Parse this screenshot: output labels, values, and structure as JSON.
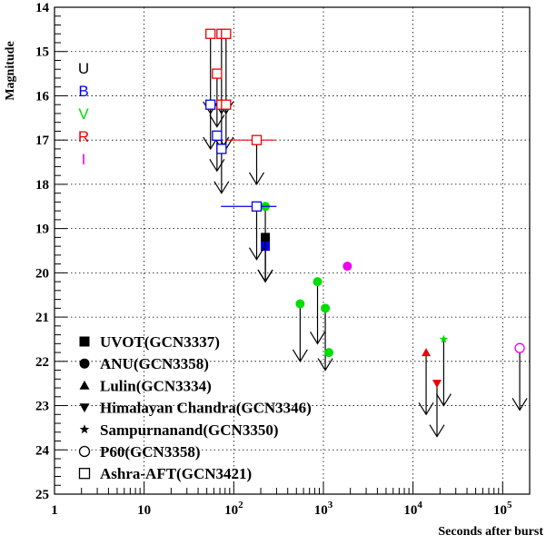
{
  "chart_data": {
    "type": "scatter",
    "xlabel": "Seconds after burst",
    "ylabel": "Magnitude",
    "xscale": "log",
    "xlim": [
      1,
      200000
    ],
    "ylim": [
      14,
      25
    ],
    "y_inverted": true,
    "grid": true,
    "x_ticks": [
      {
        "value": 1,
        "base": "1",
        "exp": ""
      },
      {
        "value": 10,
        "base": "10",
        "exp": ""
      },
      {
        "value": 100,
        "base": "10",
        "exp": "2"
      },
      {
        "value": 1000,
        "base": "10",
        "exp": "3"
      },
      {
        "value": 10000,
        "base": "10",
        "exp": "4"
      },
      {
        "value": 100000,
        "base": "10",
        "exp": "5"
      }
    ],
    "y_ticks": [
      14,
      15,
      16,
      17,
      18,
      19,
      20,
      21,
      22,
      23,
      24,
      25
    ],
    "band_labels": [
      {
        "text": "U",
        "color": "#000000"
      },
      {
        "text": "B",
        "color": "#0000ee"
      },
      {
        "text": "V",
        "color": "#00dd00"
      },
      {
        "text": "R",
        "color": "#ee0000"
      },
      {
        "text": "I",
        "color": "#ee00ee"
      }
    ],
    "legend": [
      {
        "label": "UVOT(GCN3337)",
        "marker": "square-filled"
      },
      {
        "label": "ANU(GCN3358)",
        "marker": "circle-filled"
      },
      {
        "label": "Lulin(GCN3334)",
        "marker": "triangle-up"
      },
      {
        "label": "Himalayan Chandra(GCN3346)",
        "marker": "triangle-down"
      },
      {
        "label": "Sampurnanand(GCN3350)",
        "marker": "star"
      },
      {
        "label": "P60(GCN3358)",
        "marker": "circle-open"
      },
      {
        "label": "Ashra-AFT(GCN3421)",
        "marker": "square-open"
      }
    ],
    "series": [
      {
        "source": "UVOT(GCN3337)",
        "marker": "square-filled",
        "points": [
          {
            "x": 225,
            "y": 19.2,
            "band": "U",
            "color": "#000000",
            "limit": true,
            "ylo": 20.2
          },
          {
            "x": 225,
            "y": 19.4,
            "band": "B",
            "color": "#0000ee",
            "limit": true,
            "ylo": 20.2
          }
        ]
      },
      {
        "source": "ANU(GCN3358)",
        "marker": "circle-filled",
        "points": [
          {
            "x": 225,
            "y": 18.5,
            "band": "V",
            "color": "#00dd00",
            "limit": true,
            "ylo": 20.2
          },
          {
            "x": 550,
            "y": 20.7,
            "band": "V",
            "color": "#00dd00",
            "limit": true,
            "ylo": 22.0
          },
          {
            "x": 860,
            "y": 20.2,
            "band": "V",
            "color": "#00dd00",
            "limit": true,
            "ylo": 21.6
          },
          {
            "x": 1050,
            "y": 20.8,
            "band": "V",
            "color": "#00dd00",
            "limit": true,
            "ylo": 22.2
          },
          {
            "x": 1150,
            "y": 21.8,
            "band": "V",
            "color": "#00dd00",
            "limit": false
          },
          {
            "x": 1850,
            "y": 19.85,
            "band": "I",
            "color": "#ee00ee",
            "limit": false
          }
        ]
      },
      {
        "source": "Lulin(GCN3334)",
        "marker": "triangle-up",
        "points": [
          {
            "x": 14000,
            "y": 21.8,
            "band": "R",
            "color": "#ee0000",
            "limit": true,
            "ylo": 23.2
          }
        ]
      },
      {
        "source": "Himalayan Chandra(GCN3346)",
        "marker": "triangle-down",
        "points": [
          {
            "x": 18500,
            "y": 22.5,
            "band": "R",
            "color": "#ee0000",
            "limit": true,
            "ylo": 23.7
          }
        ]
      },
      {
        "source": "Sampurnanand(GCN3350)",
        "marker": "star",
        "points": [
          {
            "x": 22000,
            "y": 21.5,
            "band": "V",
            "color": "#00dd00",
            "limit": true,
            "ylo": 23.0
          }
        ]
      },
      {
        "source": "P60(GCN3358)",
        "marker": "circle-open",
        "points": [
          {
            "x": 155000,
            "y": 21.7,
            "band": "I",
            "color": "#ee00ee",
            "limit": true,
            "ylo": 23.1
          }
        ]
      },
      {
        "source": "Ashra-AFT(GCN3421)",
        "marker": "square-open",
        "points": [
          {
            "x": 55,
            "y": 14.6,
            "band": "R",
            "color": "#ee0000",
            "limit": true,
            "ylo": 16.4
          },
          {
            "x": 73,
            "y": 14.6,
            "band": "R",
            "color": "#ee0000",
            "limit": true,
            "ylo": 16.4
          },
          {
            "x": 82,
            "y": 14.6,
            "band": "R",
            "color": "#ee0000",
            "limit": true,
            "ylo": 16.4
          },
          {
            "x": 65,
            "y": 15.5,
            "band": "R",
            "color": "#ee0000",
            "limit": true,
            "ylo": 16.7
          },
          {
            "x": 55,
            "y": 16.2,
            "band": "B",
            "color": "#0000ee",
            "limit": true,
            "ylo": 17.2
          },
          {
            "x": 73,
            "y": 16.2,
            "band": "R",
            "color": "#ee0000",
            "limit": true,
            "ylo": 17.2
          },
          {
            "x": 82,
            "y": 16.2,
            "band": "R",
            "color": "#ee0000",
            "limit": true,
            "ylo": 17.2
          },
          {
            "x": 65,
            "y": 16.9,
            "band": "B",
            "color": "#0000ee",
            "limit": true,
            "ylo": 17.7
          },
          {
            "x": 73,
            "y": 17.2,
            "band": "B",
            "color": "#0000ee",
            "limit": true,
            "ylo": 18.2
          },
          {
            "x": 180,
            "y": 17.0,
            "band": "R",
            "color": "#ee0000",
            "limit": true,
            "ylo": 18.0,
            "xerr": [
              80,
              290
            ]
          },
          {
            "x": 180,
            "y": 18.5,
            "band": "B",
            "color": "#0000ee",
            "limit": true,
            "ylo": 19.7,
            "xerr": [
              72,
              300
            ]
          }
        ]
      }
    ]
  }
}
